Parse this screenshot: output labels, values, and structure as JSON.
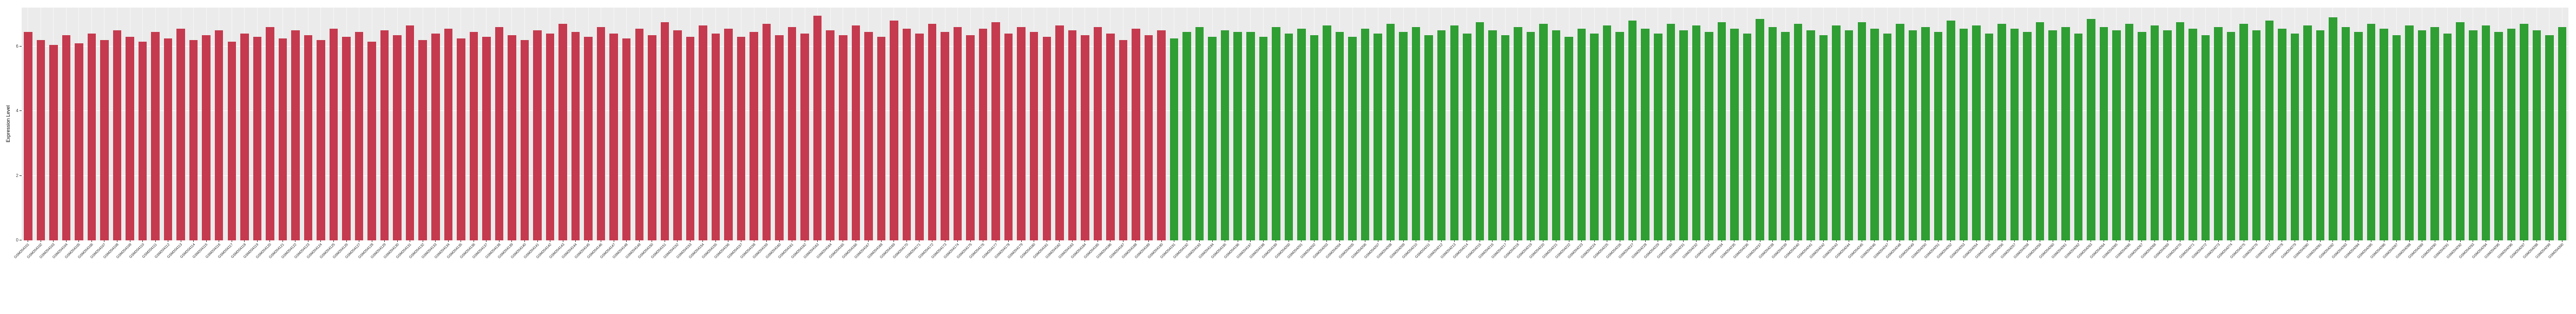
{
  "chart_data": {
    "type": "bar",
    "title": "",
    "xlabel": "",
    "ylabel": "Expression Level",
    "ylim": [
      0,
      7.2
    ],
    "yticks": [
      0,
      2,
      4,
      6
    ],
    "grid": "ggplot-style: gray panel with white gridlines",
    "legend": "none",
    "red_count": 90,
    "colors": {
      "left_group": "#c53a4e",
      "right_group": "#2f9e33",
      "panel_bg": "#ebebeb",
      "gridline": "#ffffff"
    },
    "categories": [
      "GSM204101",
      "GSM204102",
      "GSM204103",
      "GSM204104",
      "GSM204105",
      "GSM204106",
      "GSM204107",
      "GSM204108",
      "GSM204109",
      "GSM204110",
      "GSM204111",
      "GSM204112",
      "GSM204113",
      "GSM204114",
      "GSM204115",
      "GSM204116",
      "GSM204117",
      "GSM204118",
      "GSM204119",
      "GSM204120",
      "GSM204121",
      "GSM204122",
      "GSM204123",
      "GSM204124",
      "GSM204125",
      "GSM204126",
      "GSM204127",
      "GSM204128",
      "GSM204129",
      "GSM204130",
      "GSM204131",
      "GSM204132",
      "GSM204133",
      "GSM204134",
      "GSM204135",
      "GSM204136",
      "GSM204137",
      "GSM204138",
      "GSM204139",
      "GSM204140",
      "GSM204141",
      "GSM204142",
      "GSM204143",
      "GSM204144",
      "GSM204145",
      "GSM204146",
      "GSM204147",
      "GSM204148",
      "GSM204149",
      "GSM204150",
      "GSM204151",
      "GSM204152",
      "GSM204153",
      "GSM204154",
      "GSM204155",
      "GSM204156",
      "GSM204157",
      "GSM204158",
      "GSM204159",
      "GSM204160",
      "GSM204161",
      "GSM204162",
      "GSM204163",
      "GSM204164",
      "GSM204165",
      "GSM204166",
      "GSM204167",
      "GSM204168",
      "GSM204169",
      "GSM204170",
      "GSM204171",
      "GSM204172",
      "GSM204173",
      "GSM204174",
      "GSM204175",
      "GSM204176",
      "GSM204177",
      "GSM204178",
      "GSM204179",
      "GSM204180",
      "GSM204181",
      "GSM204182",
      "GSM204183",
      "GSM204184",
      "GSM204185",
      "GSM204186",
      "GSM204187",
      "GSM204188",
      "GSM204189",
      "GSM204190",
      "GSM204191",
      "GSM204192",
      "GSM204193",
      "GSM204194",
      "GSM204195",
      "GSM204196",
      "GSM204197",
      "GSM204198",
      "GSM204199",
      "GSM204200",
      "GSM204201",
      "GSM204202",
      "GSM204203",
      "GSM204204",
      "GSM204205",
      "GSM204206",
      "GSM204207",
      "GSM204208",
      "GSM204209",
      "GSM204210",
      "GSM204211",
      "GSM204212",
      "GSM204213",
      "GSM204214",
      "GSM204215",
      "GSM204216",
      "GSM204217",
      "GSM204218",
      "GSM204219",
      "GSM204220",
      "GSM204221",
      "GSM204222",
      "GSM204223",
      "GSM204224",
      "GSM204225",
      "GSM204226",
      "GSM204227",
      "GSM204228",
      "GSM204229",
      "GSM204230",
      "GSM204231",
      "GSM204232",
      "GSM204233",
      "GSM204234",
      "GSM204235",
      "GSM204236",
      "GSM204237",
      "GSM204238",
      "GSM204239",
      "GSM204240",
      "GSM204241",
      "GSM204242",
      "GSM204243",
      "GSM204244",
      "GSM204245",
      "GSM204246",
      "GSM204247",
      "GSM204248",
      "GSM204249",
      "GSM204250",
      "GSM204251",
      "GSM204252",
      "GSM204253",
      "GSM204254",
      "GSM204255",
      "GSM204256",
      "GSM204257",
      "GSM204258",
      "GSM204259",
      "GSM204260",
      "GSM204261",
      "GSM204262",
      "GSM204263",
      "GSM204264",
      "GSM204265",
      "GSM204266",
      "GSM204267",
      "GSM204268",
      "GSM204269",
      "GSM204270",
      "GSM204271",
      "GSM204272",
      "GSM204273",
      "GSM204274",
      "GSM204275",
      "GSM204276",
      "GSM204277",
      "GSM204278",
      "GSM204279",
      "GSM204280",
      "GSM204281",
      "GSM204282",
      "GSM204283",
      "GSM204284",
      "GSM204285",
      "GSM204286",
      "GSM204287",
      "GSM204288",
      "GSM204289",
      "GSM204290",
      "GSM204291",
      "GSM204292",
      "GSM204293",
      "GSM204294",
      "GSM204295",
      "GSM204296",
      "GSM204297",
      "GSM204298",
      "GSM204299",
      "GSM204300"
    ],
    "values": [
      6.45,
      6.2,
      6.05,
      6.35,
      6.1,
      6.4,
      6.2,
      6.5,
      6.3,
      6.15,
      6.45,
      6.25,
      6.55,
      6.2,
      6.35,
      6.5,
      6.15,
      6.4,
      6.3,
      6.6,
      6.25,
      6.5,
      6.35,
      6.2,
      6.55,
      6.3,
      6.45,
      6.15,
      6.5,
      6.35,
      6.65,
      6.2,
      6.4,
      6.55,
      6.25,
      6.45,
      6.3,
      6.6,
      6.35,
      6.2,
      6.5,
      6.4,
      6.7,
      6.45,
      6.3,
      6.6,
      6.4,
      6.25,
      6.55,
      6.35,
      6.75,
      6.5,
      6.3,
      6.65,
      6.4,
      6.55,
      6.3,
      6.45,
      6.7,
      6.35,
      6.6,
      6.4,
      6.95,
      6.5,
      6.35,
      6.65,
      6.45,
      6.3,
      6.8,
      6.55,
      6.4,
      6.7,
      6.45,
      6.6,
      6.35,
      6.55,
      6.75,
      6.4,
      6.6,
      6.45,
      6.3,
      6.65,
      6.5,
      6.35,
      6.6,
      6.4,
      6.2,
      6.55,
      6.35,
      6.5,
      6.25,
      6.45,
      6.6,
      6.3,
      6.5,
      6.45,
      6.45,
      6.3,
      6.6,
      6.4,
      6.55,
      6.35,
      6.65,
      6.45,
      6.3,
      6.55,
      6.4,
      6.7,
      6.45,
      6.6,
      6.35,
      6.5,
      6.65,
      6.4,
      6.75,
      6.5,
      6.35,
      6.6,
      6.45,
      6.7,
      6.5,
      6.3,
      6.55,
      6.4,
      6.65,
      6.45,
      6.8,
      6.55,
      6.4,
      6.7,
      6.5,
      6.65,
      6.45,
      6.75,
      6.55,
      6.4,
      6.85,
      6.6,
      6.45,
      6.7,
      6.5,
      6.35,
      6.65,
      6.5,
      6.75,
      6.55,
      6.4,
      6.7,
      6.5,
      6.6,
      6.45,
      6.8,
      6.55,
      6.65,
      6.4,
      6.7,
      6.55,
      6.45,
      6.75,
      6.5,
      6.6,
      6.4,
      6.85,
      6.6,
      6.5,
      6.7,
      6.45,
      6.65,
      6.5,
      6.75,
      6.55,
      6.35,
      6.6,
      6.45,
      6.7,
      6.5,
      6.8,
      6.55,
      6.4,
      6.65,
      6.5,
      6.9,
      6.6,
      6.45,
      6.7,
      6.55,
      6.35,
      6.65,
      6.5,
      6.6,
      6.4,
      6.75,
      6.5,
      6.65,
      6.45,
      6.55,
      6.7,
      6.5,
      6.35,
      6.6
    ]
  }
}
